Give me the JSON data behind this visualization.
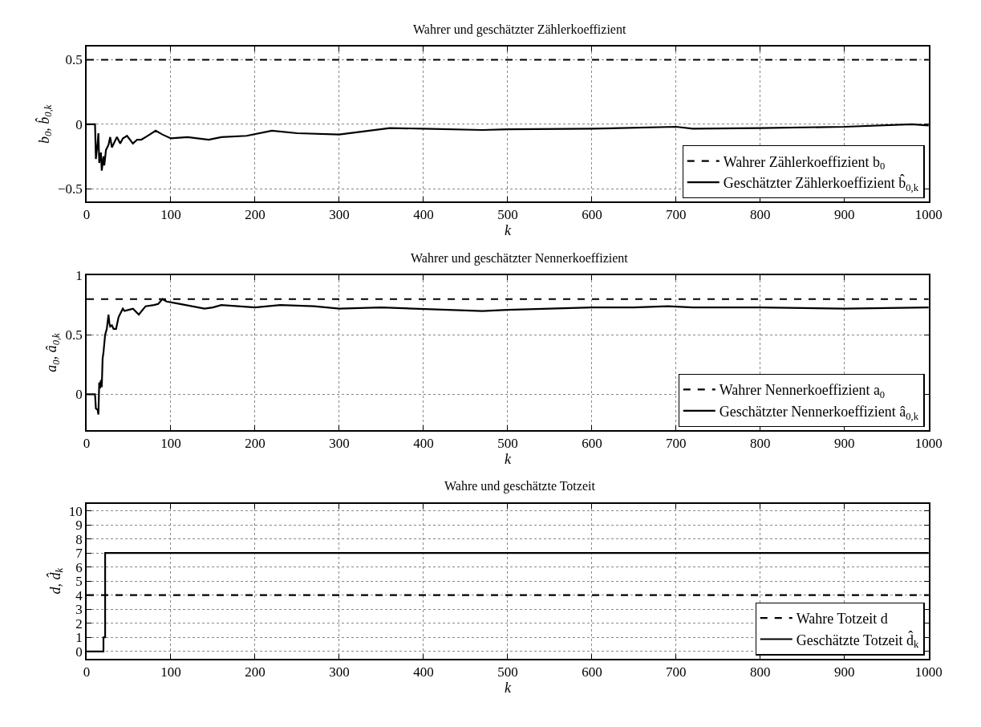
{
  "chart_data": [
    {
      "type": "line",
      "title": "Wahrer und geschätzter Zählerkoeffizient",
      "xlabel": "k",
      "ylabel": "b$_{0}$, b̂$_{0,k}$",
      "xlim": [
        0,
        1000
      ],
      "xticks": [
        0,
        100,
        200,
        300,
        400,
        500,
        600,
        700,
        800,
        900,
        1000
      ],
      "ylim": [
        -0.6,
        0.6
      ],
      "yticks": [
        -0.5,
        0,
        0.5
      ],
      "grid": true,
      "legend": "bottom right",
      "series": [
        {
          "name": "Wahrer Zählerkoeffizient b$_{0}$",
          "color": "#000000",
          "line_style": "dashed",
          "x": [
            0,
            1000
          ],
          "values": [
            0.5,
            0.5
          ]
        },
        {
          "name": "Geschätzter Zählerkoeffizient b̂$_{0,k}$",
          "color": "#000000",
          "line_style": "solid",
          "x": [
            0,
            10,
            11,
            13,
            14,
            15,
            17,
            18,
            20,
            21,
            23,
            26,
            28,
            30,
            33,
            36,
            40,
            43,
            48,
            55,
            60,
            65,
            70,
            75,
            82,
            90,
            100,
            120,
            145,
            160,
            190,
            220,
            250,
            300,
            360,
            400,
            470,
            500,
            600,
            700,
            720,
            800,
            900,
            980,
            1000
          ],
          "values": [
            0,
            0,
            -0.27,
            -0.15,
            -0.07,
            -0.3,
            -0.22,
            -0.36,
            -0.25,
            -0.32,
            -0.2,
            -0.16,
            -0.1,
            -0.18,
            -0.14,
            -0.1,
            -0.15,
            -0.11,
            -0.09,
            -0.15,
            -0.12,
            -0.12,
            -0.1,
            -0.08,
            -0.05,
            -0.08,
            -0.11,
            -0.1,
            -0.12,
            -0.1,
            -0.09,
            -0.05,
            -0.07,
            -0.08,
            -0.03,
            -0.035,
            -0.045,
            -0.04,
            -0.035,
            -0.02,
            -0.035,
            -0.03,
            -0.02,
            0,
            -0.01
          ]
        }
      ]
    },
    {
      "type": "line",
      "title": "Wahrer und geschätzter Nennerkoeffizient",
      "xlabel": "k",
      "ylabel": "a$_{0}$, â$_{0,k}$",
      "xlim": [
        0,
        1000
      ],
      "xticks": [
        0,
        100,
        200,
        300,
        400,
        500,
        600,
        700,
        800,
        900,
        1000
      ],
      "ylim": [
        -0.3,
        1
      ],
      "yticks": [
        0,
        0.5,
        1
      ],
      "grid": true,
      "legend": "bottom right",
      "series": [
        {
          "name": "Wahrer Nennerkoeffizient a$_{0}$",
          "color": "#000000",
          "line_style": "dashed",
          "x": [
            0,
            1000
          ],
          "values": [
            0.8,
            0.8
          ]
        },
        {
          "name": "Geschätzter Nennerkoeffizient â$_{0,k}$",
          "color": "#000000",
          "line_style": "solid",
          "x": [
            0,
            10,
            11,
            13,
            14,
            15,
            16,
            17,
            18,
            19,
            20,
            22,
            24,
            26,
            27,
            28,
            30,
            32,
            35,
            38,
            43,
            45,
            50,
            55,
            62,
            70,
            80,
            85,
            90,
            95,
            110,
            140,
            150,
            160,
            200,
            230,
            270,
            300,
            350,
            470,
            500,
            600,
            650,
            690,
            720,
            800,
            900,
            1000
          ],
          "values": [
            0,
            0,
            -0.12,
            -0.13,
            -0.17,
            0.1,
            0.05,
            0.12,
            0.06,
            0.3,
            0.35,
            0.5,
            0.55,
            0.67,
            0.6,
            0.57,
            0.58,
            0.55,
            0.55,
            0.65,
            0.72,
            0.7,
            0.71,
            0.72,
            0.67,
            0.74,
            0.75,
            0.76,
            0.8,
            0.78,
            0.76,
            0.72,
            0.73,
            0.75,
            0.73,
            0.75,
            0.74,
            0.72,
            0.73,
            0.7,
            0.71,
            0.73,
            0.73,
            0.74,
            0.73,
            0.73,
            0.72,
            0.73
          ]
        }
      ]
    },
    {
      "type": "line",
      "title": "Wahre und geschätzte Totzeit",
      "xlabel": "k",
      "ylabel": "d, d̂$_{k}$",
      "xlim": [
        0,
        1000
      ],
      "xticks": [
        0,
        100,
        200,
        300,
        400,
        500,
        600,
        700,
        800,
        900,
        1000
      ],
      "ylim": [
        -0.5,
        10.5
      ],
      "yticks": [
        0,
        1,
        2,
        3,
        4,
        5,
        6,
        7,
        8,
        9,
        10
      ],
      "grid": true,
      "legend": "bottom right",
      "series": [
        {
          "name": "Wahre Totzeit d",
          "color": "#000000",
          "line_style": "dashed",
          "x": [
            0,
            1000
          ],
          "values": [
            4,
            4
          ]
        },
        {
          "name": "Geschätzte Totzeit d̂$_{k}$",
          "type": "step",
          "color": "#000000",
          "line_style": "solid",
          "x": [
            0,
            20,
            22,
            1000
          ],
          "values": [
            0,
            1,
            7,
            7
          ]
        }
      ]
    }
  ]
}
